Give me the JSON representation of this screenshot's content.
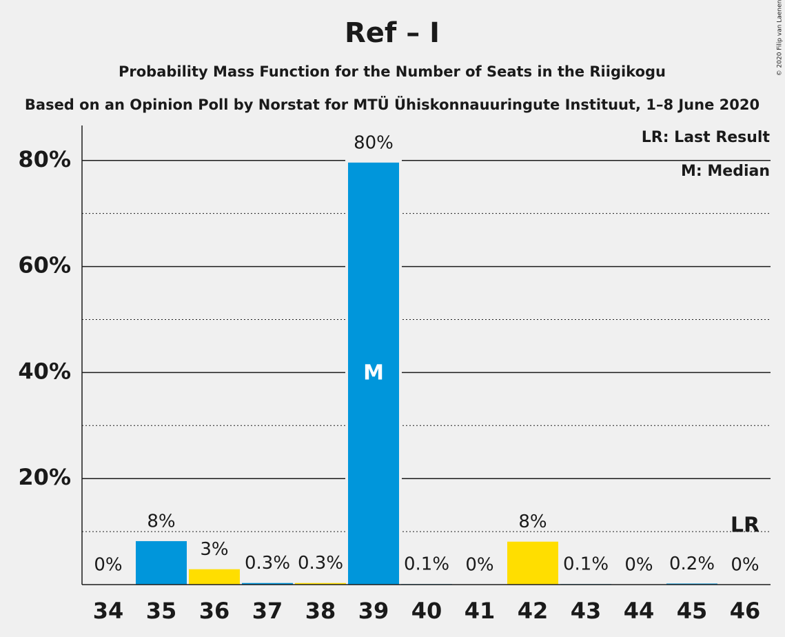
{
  "chart_data": {
    "type": "bar",
    "title": "Ref – I",
    "subtitle": "Probability Mass Function for the Number of Seats in the Riigikogu",
    "subtitle2": "Based on an Opinion Poll by Norstat for MTÜ Ühiskonnauuringute Instituut, 1–8 June 2020",
    "copyright": "© 2020 Filip van Laenen",
    "categories": [
      "34",
      "35",
      "36",
      "37",
      "38",
      "39",
      "40",
      "41",
      "42",
      "43",
      "44",
      "45",
      "46"
    ],
    "values": [
      0,
      8.2,
      2.9,
      0.3,
      0.3,
      79.6,
      0.1,
      0,
      8.1,
      0.1,
      0,
      0.2,
      0
    ],
    "value_labels": [
      "0%",
      "8%",
      "3%",
      "0.3%",
      "0.3%",
      "80%",
      "0.1%",
      "0%",
      "8%",
      "0.1%",
      "0%",
      "0.2%",
      "0%"
    ],
    "colors": [
      "#0096db",
      "#0096db",
      "#ffde00",
      "#0096db",
      "#ffde00",
      "#0096db",
      "#0096db",
      "#ffde00",
      "#ffde00",
      "#0096db",
      "#ffde00",
      "#0096db",
      "#ffde00"
    ],
    "ylim": [
      0,
      86.6
    ],
    "yticks": [
      {
        "value": 20,
        "label": "20%"
      },
      {
        "value": 40,
        "label": "40%"
      },
      {
        "value": 60,
        "label": "60%"
      },
      {
        "value": 80,
        "label": "80%"
      }
    ],
    "minor_gridlines": [
      10,
      30,
      50,
      70
    ],
    "grid": true,
    "median": {
      "index": 5,
      "label": "M"
    },
    "last_result": {
      "index": 12,
      "label": "LR"
    },
    "legend": [
      "LR: Last Result",
      "M: Median"
    ]
  }
}
